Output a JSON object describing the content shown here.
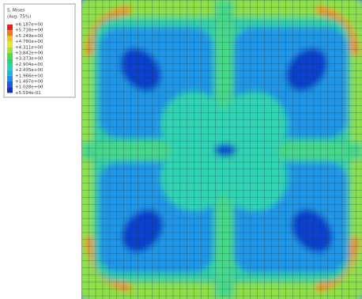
{
  "legend": {
    "title": "S, Mises",
    "subtitle": "(Avg: 75%)",
    "labels": [
      "+6.187e+00",
      "+5.718e+00",
      "+5.249e+00",
      "+4.780e+00",
      "+4.311e+00",
      "+3.842e+00",
      "+3.373e+00",
      "+2.904e+00",
      "+2.435e+00",
      "+1.966e+00",
      "+1.497e+00",
      "+1.028e+00",
      "+5.594e-01"
    ]
  }
}
